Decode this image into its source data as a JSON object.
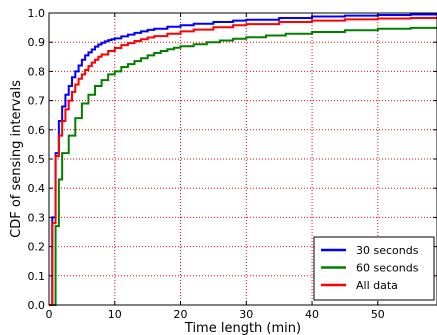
{
  "chart_data": {
    "type": "line",
    "step": true,
    "title": "",
    "xlabel": "Time length (min)",
    "ylabel": "CDF of sensing intervals",
    "xlim": [
      0,
      59
    ],
    "ylim": [
      0,
      1.0
    ],
    "xticks": [
      "0",
      "10",
      "20",
      "30",
      "40",
      "50"
    ],
    "yticks": [
      "0.0",
      "0.1",
      "0.2",
      "0.3",
      "0.4",
      "0.5",
      "0.6",
      "0.7",
      "0.8",
      "0.9",
      "1.0"
    ],
    "grid": true,
    "legend": "lower-right",
    "series": [
      {
        "name": "30 seconds",
        "color": "#0000ff",
        "x": [
          0,
          0.5,
          1,
          1.5,
          2,
          2.5,
          3,
          3.5,
          4,
          4.5,
          5,
          5.5,
          6,
          6.5,
          7,
          7.5,
          8,
          8.5,
          9,
          9.5,
          10,
          11,
          12,
          13,
          14,
          15,
          16,
          18,
          20,
          22,
          25,
          28,
          30,
          35,
          40,
          45,
          50,
          55,
          59
        ],
        "y": [
          0,
          0.3,
          0.52,
          0.63,
          0.68,
          0.72,
          0.75,
          0.78,
          0.8,
          0.82,
          0.84,
          0.855,
          0.865,
          0.875,
          0.885,
          0.892,
          0.898,
          0.903,
          0.907,
          0.91,
          0.913,
          0.92,
          0.926,
          0.932,
          0.937,
          0.942,
          0.946,
          0.953,
          0.958,
          0.963,
          0.969,
          0.974,
          0.977,
          0.983,
          0.988,
          0.991,
          0.993,
          0.995,
          0.996
        ]
      },
      {
        "name": "60 seconds",
        "color": "#008000",
        "x": [
          0,
          1,
          1.5,
          2,
          3,
          4,
          5,
          6,
          7,
          8,
          9,
          10,
          11,
          12,
          13,
          14,
          15,
          16,
          17,
          18,
          19,
          20,
          22,
          24,
          26,
          28,
          30,
          33,
          36,
          40,
          45,
          50,
          55,
          59
        ],
        "y": [
          0,
          0.27,
          0.43,
          0.52,
          0.58,
          0.64,
          0.69,
          0.72,
          0.75,
          0.77,
          0.79,
          0.8,
          0.815,
          0.825,
          0.835,
          0.845,
          0.855,
          0.863,
          0.87,
          0.876,
          0.881,
          0.886,
          0.893,
          0.9,
          0.906,
          0.912,
          0.917,
          0.923,
          0.929,
          0.935,
          0.941,
          0.946,
          0.949,
          0.95
        ]
      },
      {
        "name": "All data",
        "color": "#ff0000",
        "x": [
          0,
          0.5,
          1,
          1.5,
          2,
          2.5,
          3,
          3.5,
          4,
          4.5,
          5,
          5.5,
          6,
          6.5,
          7,
          7.5,
          8,
          9,
          10,
          11,
          12,
          13,
          14,
          15,
          16,
          18,
          20,
          22,
          25,
          28,
          30,
          35,
          40,
          45,
          50,
          55,
          59
        ],
        "y": [
          0,
          0.28,
          0.51,
          0.58,
          0.63,
          0.67,
          0.7,
          0.73,
          0.755,
          0.775,
          0.79,
          0.805,
          0.818,
          0.83,
          0.84,
          0.85,
          0.858,
          0.87,
          0.88,
          0.89,
          0.897,
          0.904,
          0.91,
          0.916,
          0.921,
          0.929,
          0.937,
          0.943,
          0.951,
          0.958,
          0.962,
          0.969,
          0.974,
          0.978,
          0.981,
          0.983,
          0.984
        ]
      }
    ]
  }
}
